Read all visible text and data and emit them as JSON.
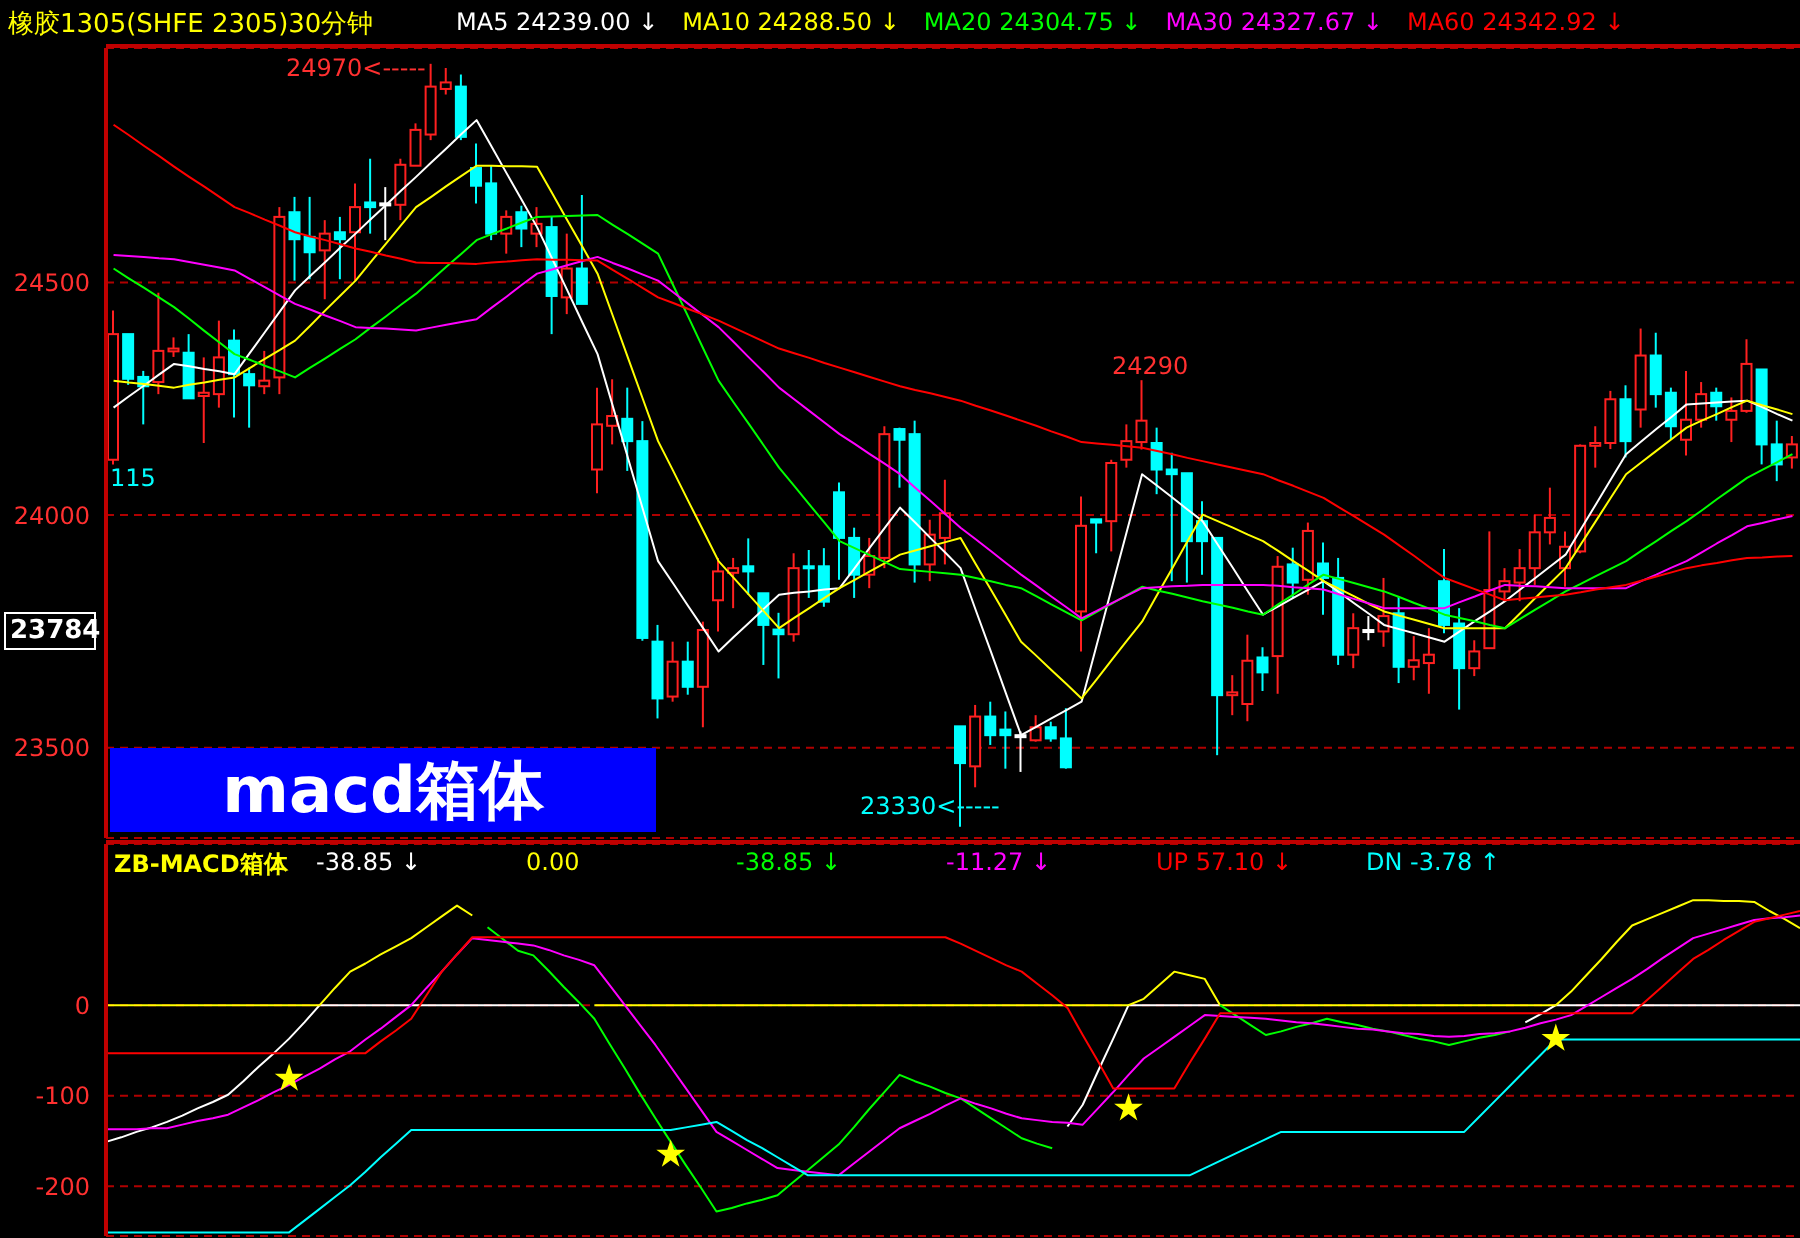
{
  "chart_data": [
    {
      "type": "candlestick",
      "title": "橡胶1305(SHFE 2305)30分钟",
      "grid": "y",
      "tick_labels": "y",
      "categories": [
        null,
        null,
        null,
        null,
        null,
        null,
        null,
        null,
        null,
        null,
        null,
        null,
        null,
        null,
        null,
        null,
        null,
        null,
        null,
        null,
        null,
        null,
        null,
        null,
        null,
        null,
        null,
        null,
        null,
        null,
        null,
        null,
        null,
        null,
        null,
        null,
        null,
        null,
        null,
        null,
        null,
        null,
        null,
        null,
        null,
        null,
        null,
        null,
        null,
        null,
        null,
        null,
        null,
        null,
        null,
        null,
        null,
        null,
        null,
        null,
        null,
        null,
        null,
        null,
        null,
        null,
        null,
        null,
        null,
        null,
        null,
        null,
        null,
        null,
        null,
        null,
        null,
        null,
        null,
        null,
        null,
        null,
        null,
        null,
        null,
        null,
        null,
        null,
        null,
        null,
        null,
        null,
        null,
        null,
        null,
        null,
        null,
        null,
        null,
        null,
        null,
        null,
        null,
        null,
        null,
        null,
        null,
        null,
        null,
        null,
        null,
        null
      ],
      "ylim": [
        23306,
        25004
      ],
      "yticks": [
        23500,
        24000,
        24500
      ],
      "ohlc": [
        [
          24119,
          24440,
          24109,
          24389
        ],
        [
          24389,
          24389,
          24280,
          24293
        ],
        [
          24297,
          24310,
          24195,
          24277
        ],
        [
          24286,
          24478,
          24260,
          24353
        ],
        [
          24352,
          24382,
          24340,
          24358
        ],
        [
          24349,
          24389,
          24250,
          24251
        ],
        [
          24256,
          24339,
          24155,
          24263
        ],
        [
          24260,
          24418,
          24231,
          24339
        ],
        [
          24375,
          24399,
          24210,
          24303
        ],
        [
          24303,
          24317,
          24188,
          24279
        ],
        [
          24277,
          24353,
          24260,
          24289
        ],
        [
          24296,
          24662,
          24260,
          24641
        ],
        [
          24651,
          24684,
          24504,
          24593
        ],
        [
          24598,
          24684,
          24507,
          24565
        ],
        [
          24569,
          24634,
          24464,
          24605
        ],
        [
          24608,
          24641,
          24507,
          24593
        ],
        [
          24608,
          24713,
          24504,
          24662
        ],
        [
          24672,
          24766,
          24605,
          24662
        ],
        [
          24670,
          24705,
          24591,
          24670
        ],
        [
          24667,
          24766,
          24634,
          24753
        ],
        [
          24751,
          24842,
          24751,
          24828
        ],
        [
          24818,
          24970,
          24806,
          24921
        ],
        [
          24916,
          24961,
          24904,
          24930
        ],
        [
          24921,
          24947,
          24806,
          24813
        ],
        [
          24746,
          24799,
          24670,
          24708
        ],
        [
          24713,
          24751,
          24591,
          24605
        ],
        [
          24605,
          24655,
          24562,
          24641
        ],
        [
          24651,
          24665,
          24576,
          24616
        ],
        [
          24605,
          24662,
          24576,
          24626
        ],
        [
          24619,
          24641,
          24389,
          24471
        ],
        [
          24468,
          24605,
          24432,
          24530
        ],
        [
          24530,
          24688,
          24454,
          24454
        ],
        [
          24098,
          24274,
          24047,
          24195
        ],
        [
          24192,
          24292,
          24152,
          24213
        ],
        [
          24207,
          24274,
          24095,
          24159
        ],
        [
          24159,
          24202,
          23730,
          23736
        ],
        [
          23728,
          23764,
          23563,
          23606
        ],
        [
          23610,
          23728,
          23599,
          23685
        ],
        [
          23685,
          23728,
          23614,
          23631
        ],
        [
          23631,
          23771,
          23544,
          23753
        ],
        [
          23817,
          23908,
          23750,
          23879
        ],
        [
          23876,
          23908,
          23800,
          23886
        ],
        [
          23890,
          23950,
          23829,
          23879
        ],
        [
          23832,
          23832,
          23678,
          23764
        ],
        [
          23754,
          23790,
          23649,
          23744
        ],
        [
          23744,
          23918,
          23728,
          23886
        ],
        [
          23890,
          23925,
          23822,
          23886
        ],
        [
          23890,
          23929,
          23803,
          23814
        ],
        [
          24049,
          24070,
          23861,
          23951
        ],
        [
          23951,
          23973,
          23822,
          23872
        ],
        [
          23872,
          23951,
          23843,
          23912
        ],
        [
          23908,
          24191,
          23886,
          24174
        ],
        [
          24185,
          24188,
          24059,
          24162
        ],
        [
          24174,
          24203,
          23855,
          23894
        ],
        [
          23894,
          23990,
          23858,
          23958
        ],
        [
          23951,
          24076,
          23894,
          24004
        ],
        [
          23546,
          23546,
          23330,
          23467
        ],
        [
          23460,
          23592,
          23415,
          23567
        ],
        [
          23567,
          23599,
          23506,
          23527
        ],
        [
          23539,
          23578,
          23455,
          23527
        ],
        [
          23527,
          23535,
          23448,
          23527
        ],
        [
          23516,
          23570,
          23513,
          23544
        ],
        [
          23544,
          23556,
          23513,
          23520
        ],
        [
          23520,
          23585,
          23455,
          23458
        ],
        [
          23793,
          24040,
          23707,
          23977
        ],
        [
          23991,
          23991,
          23918,
          23984
        ],
        [
          23987,
          24119,
          23922,
          24112
        ],
        [
          24119,
          24195,
          24102,
          24159
        ],
        [
          24157,
          24290,
          24141,
          24203
        ],
        [
          24155,
          24188,
          24045,
          24098
        ],
        [
          24098,
          24134,
          23858,
          24088
        ],
        [
          24090,
          24090,
          23855,
          23944
        ],
        [
          23987,
          24030,
          23872,
          23944
        ],
        [
          23951,
          23951,
          23484,
          23613
        ],
        [
          23613,
          23656,
          23570,
          23619
        ],
        [
          23594,
          23743,
          23557,
          23687
        ],
        [
          23694,
          23716,
          23622,
          23662
        ],
        [
          23697,
          23912,
          23616,
          23889
        ],
        [
          23894,
          23930,
          23822,
          23855
        ],
        [
          23861,
          23984,
          23829,
          23966
        ],
        [
          23896,
          23941,
          23786,
          23865
        ],
        [
          23865,
          23908,
          23678,
          23700
        ],
        [
          23700,
          23789,
          23671,
          23757
        ],
        [
          23753,
          23783,
          23731,
          23753
        ],
        [
          23750,
          23865,
          23717,
          23783
        ],
        [
          23789,
          23826,
          23639,
          23674
        ],
        [
          23674,
          23740,
          23645,
          23688
        ],
        [
          23682,
          23757,
          23616,
          23700
        ],
        [
          23858,
          23927,
          23746,
          23764
        ],
        [
          23767,
          23800,
          23582,
          23671
        ],
        [
          23671,
          23731,
          23654,
          23707
        ],
        [
          23714,
          23965,
          23714,
          23839
        ],
        [
          23836,
          23886,
          23817,
          23858
        ],
        [
          23855,
          23927,
          23815,
          23886
        ],
        [
          23886,
          24001,
          23850,
          23963
        ],
        [
          23963,
          24059,
          23937,
          23994
        ],
        [
          23886,
          23965,
          23846,
          23932
        ],
        [
          23922,
          24152,
          23918,
          24149
        ],
        [
          24149,
          24191,
          24102,
          24155
        ],
        [
          24155,
          24267,
          24142,
          24249
        ],
        [
          24249,
          24279,
          24124,
          24159
        ],
        [
          24227,
          24401,
          24188,
          24343
        ],
        [
          24343,
          24392,
          24231,
          24260
        ],
        [
          24263,
          24274,
          24162,
          24191
        ],
        [
          24162,
          24310,
          24128,
          24205
        ],
        [
          24205,
          24286,
          24188,
          24260
        ],
        [
          24263,
          24274,
          24203,
          24234
        ],
        [
          24205,
          24253,
          24157,
          24224
        ],
        [
          24224,
          24378,
          24220,
          24325
        ],
        [
          24313,
          24313,
          24109,
          24152
        ],
        [
          24152,
          24203,
          24073,
          24109
        ],
        [
          24124,
          24170,
          24100,
          24152
        ]
      ],
      "series": [
        {
          "type": "line",
          "name": "MA5 24239.00 ↓",
          "color": "#ffffff",
          "values": [
            24231,
            24255,
            24278,
            24302,
            24325,
            24320,
            24314,
            24309,
            24303,
            24348,
            24393,
            24438,
            24483,
            24514,
            24544,
            24575,
            24605,
            24636,
            24666,
            24697,
            24727,
            24758,
            24788,
            24819,
            24849,
            24792,
            24734,
            24677,
            24619,
            24551,
            24483,
            24414,
            24346,
            24235,
            24124,
            24012,
            23901,
            23853,
            23804,
            23756,
            23707,
            23738,
            23768,
            23799,
            23829,
            23833,
            23836,
            23840,
            23843,
            23886,
            23930,
            23973,
            24016,
            23984,
            23951,
            23919,
            23886,
            23796,
            23707,
            23617,
            23527,
            23545,
            23563,
            23581,
            23599,
            23721,
            23844,
            23966,
            24088,
            24063,
            24038,
            24012,
            23987,
            23937,
            23887,
            23836,
            23786,
            23804,
            23822,
            23840,
            23858,
            23835,
            23811,
            23788,
            23764,
            23755,
            23746,
            23737,
            23728,
            23750,
            23772,
            23793,
            23815,
            23840,
            23865,
            23890,
            23915,
            23969,
            24023,
            24077,
            24131,
            24158,
            24185,
            24211,
            24238,
            24240,
            24242,
            24244,
            24246,
            24232,
            24217,
            24203
          ]
        },
        {
          "type": "line",
          "name": "MA10 24288.50 ↓",
          "color": "#ffff00",
          "values": [
            24289,
            24285,
            24282,
            24278,
            24274,
            24280,
            24285,
            24291,
            24296,
            24316,
            24336,
            24355,
            24375,
            24407,
            24440,
            24472,
            24504,
            24544,
            24583,
            24623,
            24662,
            24684,
            24707,
            24729,
            24751,
            24751,
            24750,
            24750,
            24749,
            24692,
            24634,
            24577,
            24519,
            24429,
            24339,
            24249,
            24159,
            24095,
            24030,
            23966,
            23901,
            23865,
            23829,
            23793,
            23757,
            23779,
            23800,
            23822,
            23843,
            23861,
            23879,
            23897,
            23915,
            23924,
            23933,
            23942,
            23951,
            23895,
            23840,
            23784,
            23728,
            23698,
            23667,
            23637,
            23606,
            23647,
            23689,
            23730,
            23771,
            23829,
            23886,
            23944,
            24001,
            23987,
            23973,
            23958,
            23944,
            23923,
            23901,
            23880,
            23858,
            23842,
            23826,
            23809,
            23793,
            23784,
            23775,
            23766,
            23757,
            23757,
            23757,
            23757,
            23757,
            23789,
            23822,
            23854,
            23886,
            23937,
            23987,
            24038,
            24088,
            24113,
            24138,
            24163,
            24188,
            24203,
            24217,
            24232,
            24246,
            24236,
            24227,
            24217
          ]
        },
        {
          "type": "line",
          "name": "MA20 24304.75 ↓",
          "color": "#00ff00",
          "values": [
            24530,
            24509,
            24489,
            24468,
            24447,
            24422,
            24396,
            24371,
            24346,
            24334,
            24321,
            24309,
            24296,
            24317,
            24337,
            24358,
            24378,
            24403,
            24427,
            24452,
            24476,
            24505,
            24534,
            24562,
            24591,
            24604,
            24616,
            24629,
            24641,
            24642,
            24643,
            24644,
            24645,
            24624,
            24604,
            24583,
            24562,
            24494,
            24426,
            24357,
            24289,
            24242,
            24196,
            24149,
            24102,
            24063,
            24023,
            23984,
            23944,
            23929,
            23914,
            23899,
            23884,
            23881,
            23878,
            23875,
            23872,
            23865,
            23858,
            23850,
            23843,
            23826,
            23808,
            23791,
            23774,
            23792,
            23810,
            23828,
            23846,
            23838,
            23831,
            23823,
            23815,
            23808,
            23801,
            23793,
            23786,
            23808,
            23829,
            23851,
            23872,
            23863,
            23854,
            23845,
            23836,
            23824,
            23811,
            23799,
            23786,
            23779,
            23772,
            23764,
            23757,
            23777,
            23797,
            23816,
            23836,
            23852,
            23869,
            23885,
            23901,
            23923,
            23944,
            23966,
            23987,
            24010,
            24034,
            24057,
            24080,
            24097,
            24114,
            24131
          ]
        },
        {
          "type": "line",
          "name": "MA30 24327.67 ↓",
          "color": "#ff00ff",
          "values": [
            24559,
            24557,
            24555,
            24552,
            24550,
            24544,
            24538,
            24532,
            24526,
            24508,
            24490,
            24472,
            24454,
            24442,
            24429,
            24417,
            24404,
            24402,
            24401,
            24399,
            24397,
            24403,
            24409,
            24415,
            24421,
            24446,
            24470,
            24495,
            24519,
            24528,
            24537,
            24546,
            24555,
            24542,
            24530,
            24517,
            24504,
            24479,
            24454,
            24429,
            24404,
            24372,
            24339,
            24307,
            24274,
            24249,
            24224,
            24199,
            24174,
            24153,
            24131,
            24110,
            24088,
            24059,
            24031,
            24002,
            23973,
            23948,
            23923,
            23897,
            23872,
            23849,
            23825,
            23802,
            23778,
            23794,
            23811,
            23827,
            23843,
            23845,
            23847,
            23848,
            23850,
            23850,
            23850,
            23850,
            23850,
            23848,
            23845,
            23843,
            23840,
            23830,
            23820,
            23810,
            23800,
            23800,
            23800,
            23800,
            23800,
            23813,
            23825,
            23838,
            23850,
            23848,
            23847,
            23845,
            23843,
            23843,
            23843,
            23843,
            23843,
            23858,
            23872,
            23887,
            23901,
            23920,
            23939,
            23957,
            23976,
            23983,
            23991,
            23998
          ]
        },
        {
          "type": "line",
          "name": "MA60  24342.92 ↓",
          "color": "#ff0000",
          "values": [
            24839,
            24817,
            24794,
            24772,
            24749,
            24727,
            24706,
            24684,
            24662,
            24649,
            24635,
            24622,
            24608,
            24599,
            24591,
            24582,
            24573,
            24566,
            24558,
            24551,
            24543,
            24542,
            24542,
            24541,
            24540,
            24543,
            24545,
            24548,
            24550,
            24549,
            24549,
            24548,
            24547,
            24527,
            24508,
            24488,
            24468,
            24456,
            24443,
            24431,
            24418,
            24403,
            24388,
            24373,
            24358,
            24348,
            24338,
            24327,
            24317,
            24307,
            24297,
            24287,
            24277,
            24269,
            24262,
            24254,
            24246,
            24235,
            24225,
            24214,
            24203,
            24192,
            24180,
            24169,
            24157,
            24154,
            24151,
            24148,
            24145,
            24138,
            24131,
            24123,
            24116,
            24109,
            24102,
            24095,
            24088,
            24075,
            24063,
            24050,
            24037,
            24017,
            23998,
            23978,
            23958,
            23935,
            23912,
            23888,
            23865,
            23853,
            23841,
            23829,
            23817,
            23820,
            23823,
            23826,
            23829,
            23834,
            23840,
            23845,
            23850,
            23859,
            23868,
            23877,
            23886,
            23892,
            23897,
            23903,
            23908,
            23909,
            23911,
            23912
          ]
        }
      ],
      "annotations": [
        "24970<-----",
        "24290",
        "23330<-----",
        "115",
        "23784",
        "macd箱体"
      ]
    },
    {
      "type": "line",
      "title": "ZB-MACD箱体",
      "grid": "y",
      "tick_labels": "y",
      "categories": [
        null,
        null,
        null,
        null,
        null,
        null,
        null,
        null,
        null,
        null,
        null,
        null,
        null,
        null,
        null,
        null,
        null,
        null,
        null,
        null,
        null,
        null,
        null,
        null,
        null,
        null,
        null,
        null,
        null,
        null,
        null,
        null,
        null,
        null,
        null,
        null,
        null,
        null,
        null,
        null,
        null,
        null,
        null,
        null,
        null,
        null,
        null,
        null,
        null,
        null,
        null,
        null,
        null,
        null,
        null,
        null,
        null,
        null,
        null,
        null,
        null,
        null,
        null,
        null,
        null,
        null,
        null,
        null,
        null,
        null,
        null,
        null,
        null,
        null,
        null,
        null,
        null,
        null,
        null,
        null,
        null,
        null,
        null,
        null,
        null,
        null,
        null,
        null,
        null,
        null,
        null,
        null,
        null,
        null,
        null,
        null,
        null,
        null,
        null,
        null,
        null,
        null,
        null,
        null,
        null,
        null,
        null,
        null,
        null,
        null,
        null,
        null
      ],
      "ylim": [
        -255,
        178
      ],
      "yticks": [
        -200,
        -100,
        0
      ],
      "series": [
        {
          "type": "line",
          "name": "-38.85 ↓",
          "color": "#ffffff",
          "values": [
            -151,
            -146,
            -140,
            -135,
            -129,
            -122,
            -114,
            -107,
            -99,
            -84,
            -68,
            -53,
            -37,
            -19,
            0,
            0,
            0,
            0,
            0,
            0,
            0,
            0,
            0,
            0,
            0,
            0,
            0,
            0,
            0,
            0,
            0,
            0,
            null,
            null,
            null,
            null,
            null,
            null,
            null,
            null,
            null,
            null,
            null,
            null,
            null,
            null,
            null,
            null,
            null,
            null,
            null,
            null,
            null,
            null,
            null,
            null,
            null,
            null,
            null,
            null,
            null,
            null,
            null,
            -134,
            -110,
            -73,
            -37,
            0,
            0,
            0,
            0,
            0,
            0,
            0,
            null,
            null,
            null,
            null,
            null,
            null,
            null,
            null,
            null,
            null,
            null,
            null,
            null,
            null,
            null,
            null,
            null,
            null,
            null,
            -19,
            -10,
            0,
            0,
            0,
            0,
            0,
            0,
            0,
            0,
            0,
            0,
            0,
            0,
            0,
            0,
            0,
            0,
            0
          ]
        },
        {
          "type": "line",
          "name": "0.00",
          "color": "#ffff00",
          "values": [
            0,
            0,
            0,
            0,
            0,
            0,
            0,
            0,
            0,
            0,
            0,
            0,
            0,
            0,
            0,
            19,
            37,
            46,
            56,
            65,
            74,
            86,
            98,
            110,
            99,
            null,
            null,
            null,
            null,
            null,
            null,
            null,
            0,
            0,
            0,
            0,
            0,
            0,
            0,
            0,
            0,
            0,
            0,
            0,
            0,
            0,
            0,
            0,
            0,
            0,
            0,
            0,
            0,
            0,
            0,
            0,
            0,
            0,
            0,
            0,
            0,
            0,
            0,
            0,
            0,
            0,
            0,
            0,
            7,
            22,
            37,
            33,
            29,
            0,
            0,
            0,
            0,
            0,
            0,
            0,
            0,
            0,
            0,
            0,
            0,
            0,
            0,
            0,
            0,
            0,
            0,
            0,
            0,
            0,
            0,
            0,
            15,
            33,
            51,
            70,
            88,
            95,
            102,
            109,
            116,
            116,
            115,
            115,
            114,
            104,
            95,
            85
          ]
        },
        {
          "type": "line",
          "name": "-38.85 ↓",
          "color": "#00ff00",
          "values": [
            null,
            null,
            null,
            null,
            null,
            null,
            null,
            null,
            null,
            null,
            null,
            null,
            null,
            null,
            null,
            null,
            null,
            null,
            null,
            null,
            null,
            null,
            null,
            null,
            null,
            86,
            73,
            60,
            55,
            38,
            20,
            3,
            -15,
            -43,
            -70,
            -98,
            -125,
            -151,
            -177,
            -202,
            -228,
            -224,
            -219,
            -215,
            -210,
            -196,
            -182,
            -168,
            -154,
            -135,
            -115,
            -96,
            -77,
            -84,
            -90,
            -97,
            -103,
            -114,
            -125,
            -136,
            -147,
            -153,
            -158,
            null,
            null,
            null,
            null,
            null,
            null,
            null,
            null,
            null,
            null,
            0,
            -11,
            -22,
            -33,
            -29,
            -24,
            -20,
            -15,
            -19,
            -22,
            -26,
            -29,
            -33,
            -37,
            -40,
            -44,
            -40,
            -36,
            -33,
            -29,
            null,
            null,
            null,
            null,
            null,
            null,
            null,
            null,
            null,
            null,
            null,
            null,
            null,
            null,
            null,
            null,
            null,
            null,
            null
          ]
        },
        {
          "type": "line",
          "name": "-11.27 ↓",
          "color": "#ff00ff",
          "values": [
            -137,
            -137,
            -137,
            -136,
            -136,
            -132,
            -128,
            -125,
            -121,
            -113,
            -105,
            -96,
            -88,
            -79,
            -70,
            -60,
            -51,
            -38,
            -26,
            -13,
            0,
            19,
            37,
            56,
            74,
            72,
            70,
            68,
            66,
            61,
            55,
            50,
            44,
            22,
            0,
            -22,
            -44,
            -68,
            -92,
            -116,
            -140,
            -150,
            -160,
            -170,
            -180,
            -182,
            -184,
            -186,
            -188,
            -175,
            -162,
            -149,
            -136,
            -128,
            -120,
            -111,
            -103,
            -109,
            -114,
            -120,
            -125,
            -127,
            -129,
            -130,
            -132,
            -114,
            -96,
            -77,
            -59,
            -47,
            -35,
            -23,
            -11,
            -12,
            -13,
            -14,
            -15,
            -17,
            -19,
            -20,
            -22,
            -24,
            -26,
            -27,
            -29,
            -31,
            -32,
            -34,
            -35,
            -34,
            -32,
            -31,
            -29,
            -25,
            -20,
            -16,
            -11,
            -1,
            9,
            19,
            29,
            40,
            52,
            63,
            74,
            79,
            84,
            89,
            94,
            96,
            97,
            99
          ]
        },
        {
          "type": "line",
          "name": "UP  57.10 ↓",
          "color": "#ff0000",
          "values": [
            -53,
            -53,
            -53,
            -53,
            -53,
            -53,
            -53,
            -53,
            -53,
            -53,
            -53,
            -53,
            -53,
            -53,
            -53,
            -53,
            -53,
            -53,
            -40,
            -28,
            -15,
            11,
            37,
            56,
            75,
            75,
            75,
            75,
            75,
            75,
            75,
            75,
            75,
            75,
            75,
            75,
            75,
            75,
            75,
            75,
            75,
            75,
            75,
            75,
            75,
            75,
            75,
            75,
            75,
            75,
            75,
            75,
            75,
            75,
            75,
            75,
            68,
            60,
            52,
            44,
            37,
            24,
            11,
            -3,
            -33,
            -62,
            -92,
            -92,
            -92,
            -92,
            -92,
            -64,
            -37,
            -9,
            -9,
            -9,
            -9,
            -9,
            -9,
            -9,
            -9,
            -9,
            -9,
            -9,
            -9,
            -9,
            -9,
            -9,
            -9,
            -9,
            -9,
            -9,
            -9,
            -9,
            -9,
            -9,
            -9,
            -9,
            -9,
            -9,
            -9,
            6,
            21,
            36,
            51,
            61,
            72,
            82,
            92,
            96,
            100,
            104
          ]
        },
        {
          "type": "line",
          "name": "DN  -3.78 ↑",
          "color": "#00ffff",
          "values": [
            -251,
            -251,
            -251,
            -251,
            -251,
            -251,
            -251,
            -251,
            -251,
            -251,
            -251,
            -251,
            -251,
            -238,
            -225,
            -212,
            -199,
            -184,
            -168,
            -153,
            -138,
            -138,
            -138,
            -138,
            -138,
            -138,
            -138,
            -138,
            -138,
            -138,
            -138,
            -138,
            -138,
            -138,
            -138,
            -138,
            -138,
            -138,
            -135,
            -132,
            -129,
            -139,
            -149,
            -158,
            -168,
            -178,
            -188,
            -188,
            -188,
            -188,
            -188,
            -188,
            -188,
            -188,
            -188,
            -188,
            -188,
            -188,
            -188,
            -188,
            -188,
            -188,
            -188,
            -188,
            -188,
            -188,
            -188,
            -188,
            -188,
            -188,
            -188,
            -188,
            -180,
            -172,
            -164,
            -156,
            -148,
            -140,
            -140,
            -140,
            -140,
            -140,
            -140,
            -140,
            -140,
            -140,
            -140,
            -140,
            -140,
            -140,
            -123,
            -106,
            -89,
            -72,
            -55,
            -38,
            -38,
            -38,
            -38,
            -38,
            -38,
            -38,
            -38,
            -38,
            -38,
            -38,
            -38,
            -38,
            -38,
            -38,
            -38,
            -38
          ]
        },
        {
          "type": "scatter",
          "marker": "star",
          "color": "#ffff00",
          "values": [
            null,
            null,
            null,
            null,
            null,
            null,
            null,
            null,
            null,
            null,
            null,
            null,
            -81,
            null,
            null,
            null,
            null,
            null,
            null,
            null,
            null,
            null,
            null,
            null,
            null,
            null,
            null,
            null,
            null,
            null,
            null,
            null,
            null,
            null,
            null,
            null,
            null,
            -165,
            null,
            null,
            null,
            null,
            null,
            null,
            null,
            null,
            null,
            null,
            null,
            null,
            null,
            null,
            null,
            null,
            null,
            null,
            null,
            null,
            null,
            null,
            null,
            null,
            null,
            null,
            null,
            null,
            null,
            -114,
            null,
            null,
            null,
            null,
            null,
            null,
            null,
            null,
            null,
            null,
            null,
            null,
            null,
            null,
            null,
            null,
            null,
            null,
            null,
            null,
            null,
            null,
            null,
            null,
            null,
            null,
            null,
            -37,
            null,
            null,
            null,
            null,
            null,
            null,
            null,
            null,
            null,
            null,
            null,
            null,
            null,
            null,
            null,
            null
          ]
        }
      ]
    }
  ]
}
